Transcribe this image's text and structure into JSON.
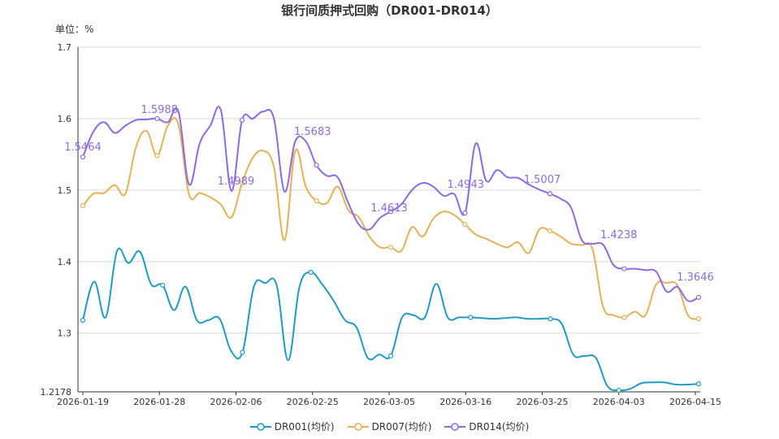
{
  "chart_data": {
    "type": "line",
    "title": "银行间质押式回购（DR001-DR014）",
    "unit_label": "单位：%",
    "x_ticks": [
      "2026-01-19",
      "2026-01-28",
      "2026-02-06",
      "2026-02-25",
      "2026-03-05",
      "2026-03-16",
      "2026-03-25",
      "2026-04-03",
      "2026-04-15"
    ],
    "y_ticks": [
      1.2178,
      1.3,
      1.4,
      1.5,
      1.6,
      1.7
    ],
    "ylim": [
      1.2178,
      1.7
    ],
    "grid": true,
    "legend_position": "bottom",
    "series": [
      {
        "name": "DR001(均价)",
        "color": "#1f9cc4",
        "values": [
          1.318,
          1.372,
          1.322,
          1.415,
          1.398,
          1.414,
          1.368,
          1.367,
          1.332,
          1.365,
          1.318,
          1.318,
          1.32,
          1.275,
          1.273,
          1.365,
          1.37,
          1.367,
          1.262,
          1.365,
          1.385,
          1.368,
          1.345,
          1.318,
          1.308,
          1.265,
          1.27,
          1.268,
          1.322,
          1.325,
          1.322,
          1.369,
          1.322,
          1.322,
          1.322,
          1.321,
          1.32,
          1.321,
          1.322,
          1.32,
          1.32,
          1.32,
          1.313,
          1.27,
          1.268,
          1.265,
          1.226,
          1.22,
          1.222,
          1.23,
          1.231,
          1.231,
          1.228,
          1.228,
          1.229
        ],
        "point_labels": []
      },
      {
        "name": "DR007(均价)",
        "color": "#e5b256",
        "values": [
          1.478,
          1.495,
          1.496,
          1.507,
          1.495,
          1.56,
          1.583,
          1.548,
          1.59,
          1.592,
          1.494,
          1.496,
          1.49,
          1.48,
          1.462,
          1.51,
          1.545,
          1.555,
          1.532,
          1.43,
          1.555,
          1.505,
          1.485,
          1.482,
          1.505,
          1.472,
          1.462,
          1.435,
          1.42,
          1.42,
          1.415,
          1.448,
          1.435,
          1.46,
          1.47,
          1.465,
          1.452,
          1.438,
          1.432,
          1.425,
          1.42,
          1.427,
          1.412,
          1.445,
          1.443,
          1.435,
          1.425,
          1.423,
          1.418,
          1.337,
          1.325,
          1.322,
          1.33,
          1.325,
          1.368,
          1.37,
          1.367,
          1.325,
          1.32
        ],
        "point_labels": []
      },
      {
        "name": "DR014(均价)",
        "color": "#8e69e2",
        "values": [
          1.5464,
          1.582,
          1.595,
          1.58,
          1.59,
          1.598,
          1.5988,
          1.6,
          1.595,
          1.61,
          1.508,
          1.565,
          1.59,
          1.612,
          1.4989,
          1.598,
          1.6,
          1.61,
          1.6,
          1.498,
          1.568,
          1.5683,
          1.535,
          1.52,
          1.518,
          1.482,
          1.452,
          1.445,
          1.4613,
          1.47,
          1.48,
          1.5,
          1.51,
          1.505,
          1.492,
          1.4943,
          1.468,
          1.565,
          1.513,
          1.528,
          1.518,
          1.517,
          1.508,
          1.5007,
          1.495,
          1.488,
          1.475,
          1.43,
          1.425,
          1.4238,
          1.395,
          1.39,
          1.39,
          1.388,
          1.386,
          1.358,
          1.3646,
          1.345,
          1.35
        ],
        "point_labels": []
      }
    ],
    "annotations": [
      {
        "series": "DR014(均价)",
        "date_index": 0,
        "value": 1.5464,
        "text": "1.5464"
      },
      {
        "series": "DR014(均价)",
        "date_index": 1,
        "value": 1.5988,
        "text": "1.5988"
      },
      {
        "series": "DR014(均价)",
        "date_index": 2,
        "value": 1.4989,
        "text": "1.4989"
      },
      {
        "series": "DR014(均价)",
        "date_index": 3,
        "value": 1.5683,
        "text": "1.5683"
      },
      {
        "series": "DR014(均价)",
        "date_index": 4,
        "value": 1.4613,
        "text": "1.4613"
      },
      {
        "series": "DR014(均价)",
        "date_index": 5,
        "value": 1.4943,
        "text": "1.4943"
      },
      {
        "series": "DR014(均价)",
        "date_index": 6,
        "value": 1.5007,
        "text": "1.5007"
      },
      {
        "series": "DR014(均价)",
        "date_index": 7,
        "value": 1.4238,
        "text": "1.4238"
      },
      {
        "series": "DR014(均价)",
        "date_index": 8,
        "value": 1.3646,
        "text": "1.3646"
      }
    ]
  }
}
